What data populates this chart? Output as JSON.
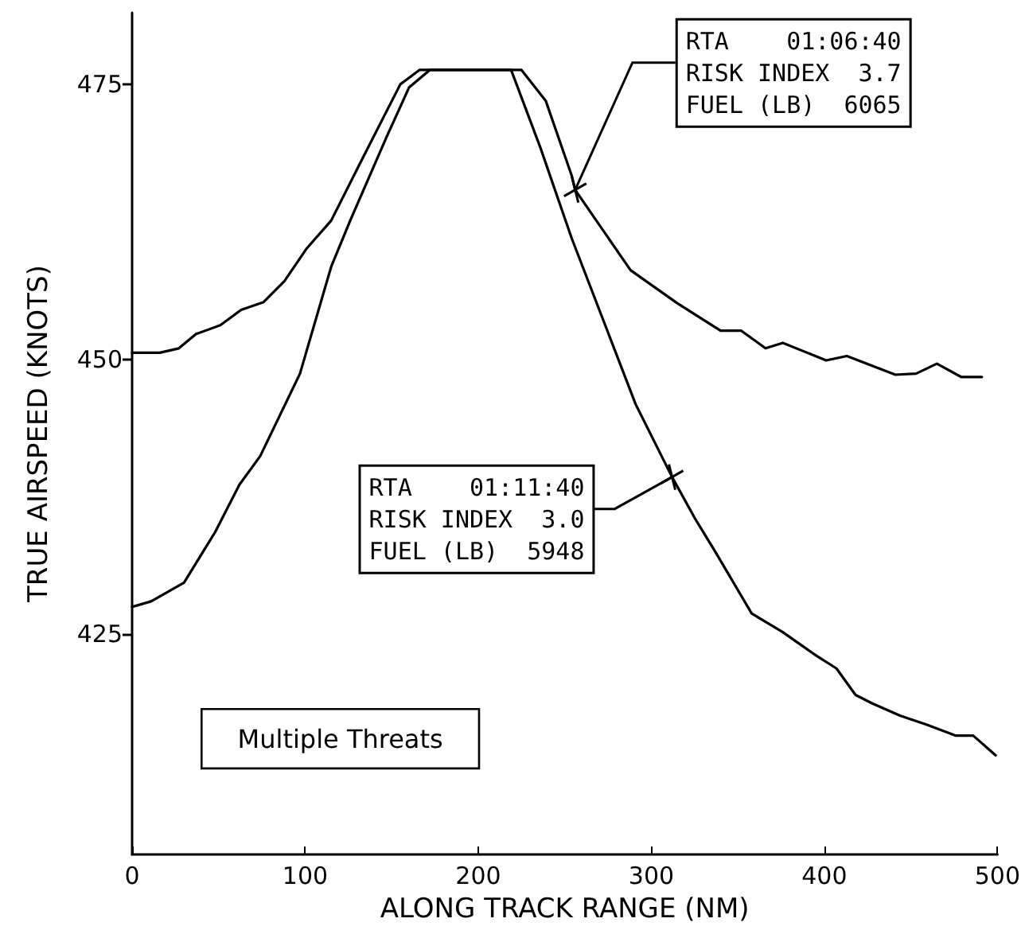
{
  "chart_data": {
    "type": "line",
    "xlabel": "ALONG TRACK RANGE (NM)",
    "ylabel": "TRUE AIRSPEED (KNOTS)",
    "xlim": [
      0,
      500
    ],
    "xticks": [
      0,
      100,
      200,
      300,
      400,
      500
    ],
    "ylim": [
      405,
      481.5
    ],
    "yticks": [
      425,
      450,
      475
    ],
    "grid": false,
    "marker": "none",
    "line_style": "solid",
    "series": [
      {
        "color": "#000000",
        "x": [
          0,
          16,
          27,
          37,
          51,
          63,
          76,
          88,
          101,
          115,
          132,
          155,
          166,
          225,
          239,
          254,
          256,
          288,
          315,
          340,
          352,
          366,
          376,
          401,
          413,
          441,
          453,
          465,
          479,
          491
        ],
        "values": [
          450.6,
          450.6,
          451,
          452.3,
          453.1,
          454.5,
          455.2,
          457.1,
          460.1,
          462.6,
          467.9,
          475,
          476.3,
          476.3,
          473.5,
          466.7,
          465.4,
          458.1,
          455.1,
          452.6,
          452.6,
          451,
          451.5,
          449.9,
          450.3,
          448.6,
          448.7,
          449.6,
          448.4,
          448.4
        ]
      },
      {
        "color": "#000000",
        "x": [
          0,
          11,
          30,
          48,
          62,
          74,
          97,
          115,
          126,
          147,
          160,
          172,
          219,
          236,
          254,
          291,
          312,
          325,
          337,
          358,
          376,
          395,
          407,
          418,
          428,
          444,
          459,
          476,
          486,
          499
        ],
        "values": [
          427.5,
          428,
          429.7,
          434.3,
          438.6,
          441.2,
          448.7,
          458.4,
          462.6,
          470.2,
          474.7,
          476.3,
          476.3,
          469.2,
          461,
          445.9,
          439.3,
          435.6,
          432.5,
          426.9,
          425.2,
          423.1,
          421.9,
          419.5,
          418.7,
          417.6,
          416.8,
          415.8,
          415.8,
          414
        ]
      }
    ],
    "annotations": [
      {
        "text": "RTA    01:06:40\nRISK INDEX  3.7\nFUEL (LB)  6065",
        "x": 256,
        "y": 465.4
      },
      {
        "text": "RTA    01:11:40\nRISK INDEX  3.0\nFUEL (LB)  5948",
        "x": 312,
        "y": 439.3
      },
      "Multiple Threats"
    ]
  }
}
